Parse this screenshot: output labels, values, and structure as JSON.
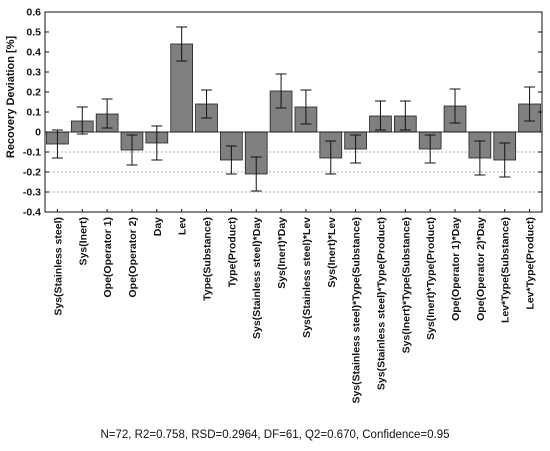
{
  "chart_data": {
    "type": "bar",
    "ylabel": "Recovery Deviation [%]",
    "ylim": [
      -0.4,
      0.6
    ],
    "yticks": [
      "-0.4",
      "-0.3",
      "-0.2",
      "-0.1",
      "0",
      "0.1",
      "0.2",
      "0.3",
      "0.4",
      "0.5",
      "0.6"
    ],
    "reference_lines": [
      -0.1,
      -0.2,
      -0.3
    ],
    "categories": [
      "Sys(Stainless steel)",
      "Sys(Inert)",
      "Ope(Operator 1)",
      "Ope(Operator 2)",
      "Day",
      "Lev",
      "Type(Substance)",
      "Type(Product)",
      "Sys(Stainless steel)*Day",
      "Sys(Inert)*Day",
      "Sys(Stainless steel)*Lev",
      "Sys(Inert)*Lev",
      "Sys(Stainless steel)*Type(Substance)",
      "Sys(Stainless steel)*Type(Product)",
      "Sys(Inert)*Type(Substance)",
      "Sys(Inert)*Type(Product)",
      "Ope(Operator 1)*Day",
      "Ope(Operator 2)*Day",
      "Lev*Type(Substance)",
      "Lev*Type(Product)"
    ],
    "values": [
      -0.06,
      0.055,
      0.09,
      -0.09,
      -0.055,
      0.44,
      0.14,
      -0.14,
      -0.21,
      0.205,
      0.125,
      -0.13,
      -0.085,
      0.08,
      0.08,
      -0.085,
      0.13,
      -0.13,
      -0.14,
      0.14
    ],
    "error_low": [
      -0.13,
      -0.01,
      0.02,
      -0.165,
      -0.14,
      0.355,
      0.07,
      -0.21,
      -0.295,
      0.12,
      0.04,
      -0.21,
      -0.155,
      0.01,
      0.01,
      -0.155,
      0.045,
      -0.215,
      -0.225,
      0.055
    ],
    "error_high": [
      0.01,
      0.125,
      0.165,
      -0.015,
      0.03,
      0.525,
      0.21,
      -0.07,
      -0.125,
      0.29,
      0.21,
      -0.045,
      -0.015,
      0.155,
      0.155,
      -0.015,
      0.215,
      -0.045,
      -0.055,
      0.225
    ],
    "bar_color": "#808080",
    "grid": false
  },
  "footer": "N=72, R2=0.758, RSD=0.2964, DF=61, Q2=0.670, Confidence=0.95"
}
